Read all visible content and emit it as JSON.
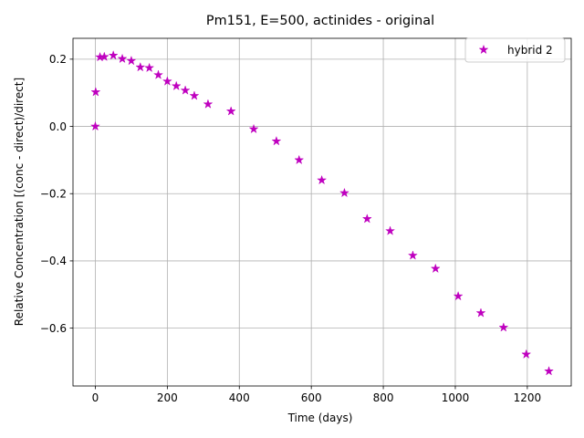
{
  "chart_data": {
    "type": "scatter",
    "title": "Pm151, E=500, actinides - original",
    "xlabel": "Time (days)",
    "ylabel": "Relative Concentration [(conc - direct)/direct]",
    "xlim": [
      -62,
      1322
    ],
    "ylim": [
      -0.772,
      0.262
    ],
    "xticks": [
      0,
      200,
      400,
      600,
      800,
      1000,
      1200
    ],
    "xtick_labels": [
      "0",
      "200",
      "400",
      "600",
      "800",
      "1000",
      "1200"
    ],
    "yticks": [
      0.2,
      0.0,
      -0.2,
      -0.4,
      -0.6
    ],
    "ytick_labels": [
      "0.2",
      "0.0",
      "−0.2",
      "−0.4",
      "−0.6"
    ],
    "grid": true,
    "legend_position": "top-right",
    "series": [
      {
        "name": "hybrid 2",
        "color": "#bf00bf",
        "marker": "star",
        "x": [
          0,
          1,
          13,
          25,
          50,
          75,
          100,
          125,
          150,
          175,
          200,
          225,
          250,
          275,
          313,
          377,
          440,
          503,
          566,
          629,
          692,
          755,
          819,
          882,
          945,
          1008,
          1071,
          1134,
          1197,
          1260
        ],
        "y": [
          0.0,
          0.102,
          0.206,
          0.207,
          0.211,
          0.201,
          0.195,
          0.176,
          0.174,
          0.153,
          0.134,
          0.12,
          0.107,
          0.091,
          0.066,
          0.045,
          -0.008,
          -0.044,
          -0.1,
          -0.16,
          -0.198,
          -0.275,
          -0.311,
          -0.384,
          -0.423,
          -0.505,
          -0.555,
          -0.598,
          -0.678,
          -0.728
        ]
      }
    ]
  }
}
